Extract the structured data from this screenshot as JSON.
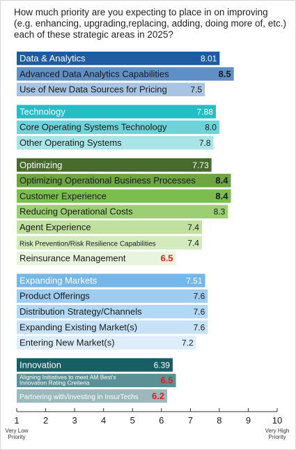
{
  "title": "How much priority are you expecting to place in on improving (e.g. enhancing, upgrading,replacing, adding, doing more of, etc.) each of these strategic areas in 2025?",
  "chart_data": {
    "type": "bar",
    "orientation": "horizontal",
    "xlim": [
      1,
      10
    ],
    "ticks": [
      1,
      2,
      3,
      4,
      5,
      6,
      7,
      8,
      9,
      10
    ],
    "axis_end_labels": {
      "low": "Very Low Priority",
      "high": "Very High Priority"
    },
    "groups": [
      {
        "name": "Data & Analytics",
        "value": 8.01,
        "color": "#1e5ba0",
        "items": [
          {
            "label": "Advanced Data Analytics Capabilities",
            "value": 8.5,
            "display": "8.5",
            "color": "#5f8fc5",
            "value_style": "bold"
          },
          {
            "label": "Use of New Data Sources for Pricing",
            "value": 7.5,
            "display": "7.5",
            "color": "#a9c3e2",
            "value_style": "normal"
          }
        ]
      },
      {
        "name": "Technology",
        "value": 7.88,
        "color": "#25bcc4",
        "items": [
          {
            "label": "Core Operating Systems Technology",
            "value": 8.0,
            "display": "8.0",
            "color": "#6dd3d8",
            "value_style": "normal"
          },
          {
            "label": "Other Operating Systems",
            "value": 7.8,
            "display": "7.8",
            "color": "#a9e4e7",
            "value_style": "normal"
          }
        ]
      },
      {
        "name": "Optimizing",
        "value": 7.73,
        "color": "#466b2c",
        "items": [
          {
            "label": "Optimizing Operational Business Processes",
            "value": 8.4,
            "display": "8.4",
            "color": "#6ea542",
            "value_style": "bold"
          },
          {
            "label": "Customer Experience",
            "value": 8.4,
            "display": "8.4",
            "color": "#7cbd4f",
            "value_style": "bold"
          },
          {
            "label": "Reducing Operational Costs",
            "value": 8.3,
            "display": "8.3",
            "color": "#9ccf73",
            "value_style": "normal"
          },
          {
            "label": "Agent Experience",
            "value": 7.4,
            "display": "7.4",
            "color": "#bfe09f",
            "value_style": "normal"
          },
          {
            "label": "Risk Prevention/Risk Resilience Capabilities",
            "value": 7.4,
            "display": "7.4",
            "color": "#d3eabd",
            "value_style": "normal",
            "small": true
          },
          {
            "label": "Reinsurance Management",
            "value": 6.5,
            "display": "6.5",
            "color": "#e9f4de",
            "value_style": "red"
          }
        ]
      },
      {
        "name": "Expanding Markets",
        "value": 7.51,
        "color": "#74b7e8",
        "items": [
          {
            "label": "Product Offerings",
            "value": 7.6,
            "display": "7.6",
            "color": "#9ecdf0",
            "value_style": "normal"
          },
          {
            "label": "Distribution Strategy/Channels",
            "value": 7.6,
            "display": "7.6",
            "color": "#b3d8f3",
            "value_style": "normal"
          },
          {
            "label": "Expanding Existing Market(s)",
            "value": 7.6,
            "display": "7.6",
            "color": "#c7e2f6",
            "value_style": "normal"
          },
          {
            "label": "Entering New Market(s)",
            "value": 7.2,
            "display": "7.2",
            "color": "#ddedf9",
            "value_style": "normal"
          }
        ]
      },
      {
        "name": "Innovation",
        "value": 6.39,
        "color": "#175d64",
        "items": [
          {
            "label": "Aligning Initiatives to meet AM Best's Innovation Rating Creiteria",
            "value": 6.5,
            "display": "6.5",
            "color": "#5a9096",
            "value_style": "red",
            "small": true,
            "wrap": [
              "Aligning Initiatives to meet AM Best's",
              "Innovation Rating Creiteria"
            ]
          },
          {
            "label": "Partnering with/investing in InsurTechs",
            "value": 6.2,
            "display": "6.2",
            "color": "#9bb9bc",
            "value_style": "red",
            "small": true
          }
        ]
      }
    ]
  }
}
